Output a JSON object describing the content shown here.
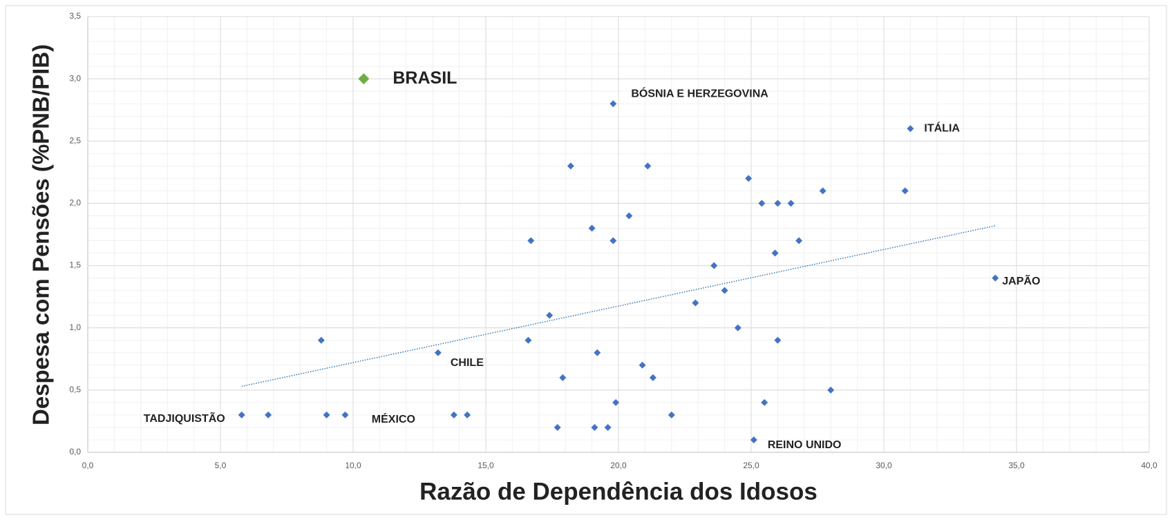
{
  "chart_data": {
    "type": "scatter",
    "xlabel": "Razão de Dependência dos Idosos",
    "ylabel": "Despesa com Pensões (%PNB/PIB)",
    "xlim": [
      0,
      40
    ],
    "ylim": [
      0,
      3.5
    ],
    "xticks": [
      {
        "value": 0,
        "label": "0,0"
      },
      {
        "value": 5,
        "label": "5,0"
      },
      {
        "value": 10,
        "label": "10,0"
      },
      {
        "value": 15,
        "label": "15,0"
      },
      {
        "value": 20,
        "label": "20,0"
      },
      {
        "value": 25,
        "label": "25,0"
      },
      {
        "value": 30,
        "label": "30,0"
      },
      {
        "value": 35,
        "label": "35,0"
      },
      {
        "value": 40,
        "label": "40,0"
      }
    ],
    "yticks": [
      {
        "value": 0,
        "label": "0,0"
      },
      {
        "value": 0.5,
        "label": "0,5"
      },
      {
        "value": 1,
        "label": "1,0"
      },
      {
        "value": 1.5,
        "label": "1,5"
      },
      {
        "value": 2,
        "label": "2,0"
      },
      {
        "value": 2.5,
        "label": "2,5"
      },
      {
        "value": 3,
        "label": "3,0"
      },
      {
        "value": 3.5,
        "label": "3,5"
      }
    ],
    "grid": true,
    "series": [
      {
        "color": "#4472c4",
        "x": [
          5.8,
          6.8,
          8.8,
          9.0,
          9.7,
          13.2,
          13.8,
          14.3,
          16.6,
          16.7,
          17.4,
          17.7,
          17.9,
          18.2,
          19.0,
          19.1,
          19.2,
          19.6,
          19.8,
          19.8,
          19.9,
          20.4,
          20.9,
          21.1,
          21.3,
          22.0,
          22.9,
          23.6,
          24.0,
          24.5,
          24.9,
          25.1,
          25.4,
          25.5,
          25.9,
          26.0,
          26.0,
          26.5,
          26.8,
          27.7,
          28.0,
          30.8,
          31.0,
          34.2
        ],
        "values": [
          0.3,
          0.3,
          0.9,
          0.3,
          0.3,
          0.8,
          0.3,
          0.3,
          0.9,
          1.7,
          1.1,
          0.2,
          0.6,
          2.3,
          1.8,
          0.2,
          0.8,
          0.2,
          2.8,
          1.7,
          0.4,
          1.9,
          0.7,
          2.3,
          0.6,
          0.3,
          1.2,
          1.5,
          1.3,
          1.0,
          2.2,
          0.1,
          2.0,
          0.4,
          1.6,
          2.0,
          0.9,
          2.0,
          1.7,
          2.1,
          0.5,
          2.1,
          2.6,
          1.4
        ],
        "labels": [
          "TADJIQUISTÃO",
          null,
          null,
          null,
          null,
          "CHILE",
          "MÉXICO",
          null,
          null,
          null,
          null,
          null,
          null,
          null,
          null,
          null,
          null,
          null,
          "BÓSNIA E HERZEGOVINA",
          null,
          null,
          null,
          null,
          null,
          null,
          null,
          null,
          null,
          null,
          null,
          null,
          "REINO UNIDO",
          null,
          null,
          null,
          null,
          null,
          null,
          null,
          null,
          null,
          null,
          "ITÁLIA",
          "JAPÃO"
        ]
      },
      {
        "color": "#70ad47",
        "x": [
          10.4
        ],
        "values": [
          3.0
        ],
        "labels": [
          "BRASIL"
        ]
      }
    ],
    "trendline": {
      "color": "#2e75b6",
      "x": [
        5.8,
        34.2
      ],
      "values": [
        0.53,
        1.82
      ]
    }
  }
}
